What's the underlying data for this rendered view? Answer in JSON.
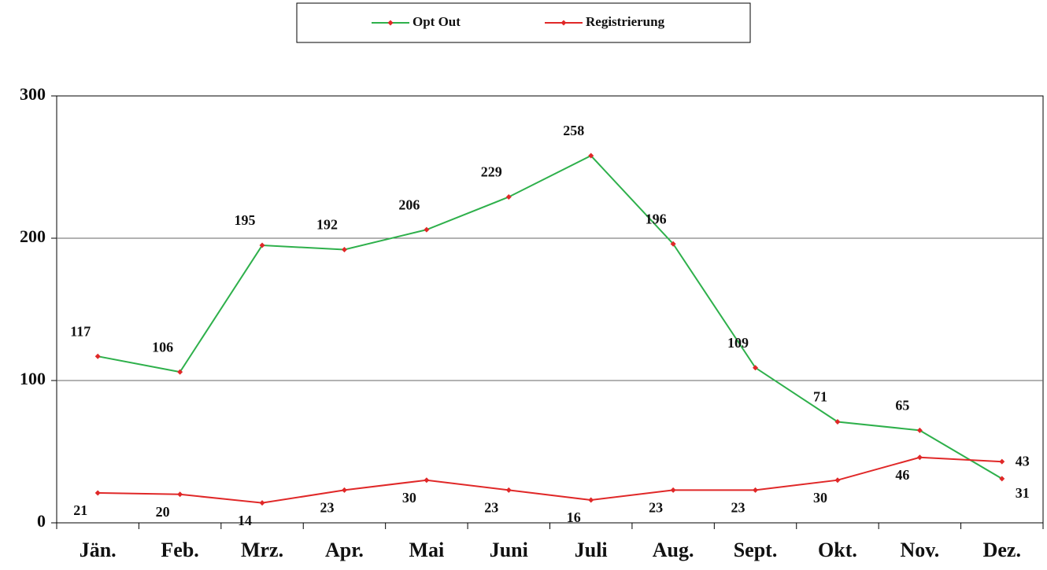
{
  "chart_data": {
    "type": "line",
    "categories": [
      "Jän.",
      "Feb.",
      "Mrz.",
      "Apr.",
      "Mai",
      "Juni",
      "Juli",
      "Aug.",
      "Sept.",
      "Okt.",
      "Nov.",
      "Dez."
    ],
    "series": [
      {
        "name": "Opt Out",
        "color": "#2eb04b",
        "values": [
          117,
          106,
          195,
          192,
          206,
          229,
          258,
          196,
          109,
          71,
          65,
          31
        ]
      },
      {
        "name": "Registrierung",
        "color": "#e02828",
        "values": [
          21,
          20,
          14,
          23,
          30,
          23,
          16,
          23,
          23,
          30,
          46,
          43
        ]
      }
    ],
    "marker_color": "#e02828",
    "ylim": [
      0,
      300
    ],
    "yticks": [
      0,
      100,
      200,
      300
    ],
    "grid": true,
    "legend": "top"
  }
}
